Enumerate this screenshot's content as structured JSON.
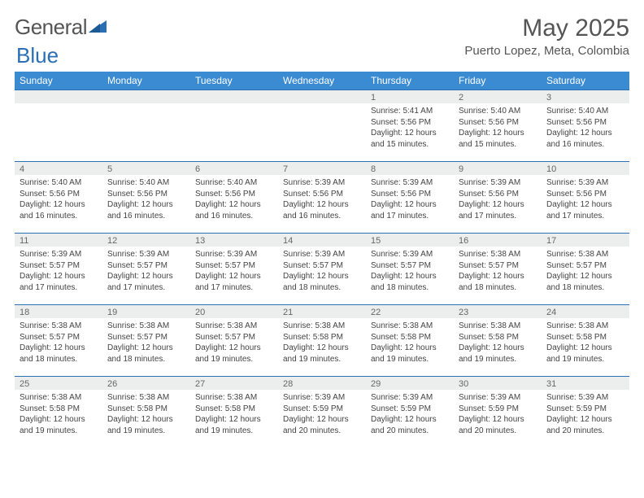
{
  "brand": {
    "part1": "General",
    "part2": "Blue"
  },
  "title": "May 2025",
  "location": "Puerto Lopez, Meta, Colombia",
  "colors": {
    "header_bg": "#3b8bd3",
    "header_text": "#ffffff",
    "rule": "#2a6fb5",
    "daynum_bg": "#eceeee",
    "text": "#444444",
    "title_text": "#555555"
  },
  "day_headers": [
    "Sunday",
    "Monday",
    "Tuesday",
    "Wednesday",
    "Thursday",
    "Friday",
    "Saturday"
  ],
  "weeks": [
    [
      null,
      null,
      null,
      null,
      {
        "n": "1",
        "sunrise": "5:41 AM",
        "sunset": "5:56 PM",
        "daylight": "12 hours and 15 minutes."
      },
      {
        "n": "2",
        "sunrise": "5:40 AM",
        "sunset": "5:56 PM",
        "daylight": "12 hours and 15 minutes."
      },
      {
        "n": "3",
        "sunrise": "5:40 AM",
        "sunset": "5:56 PM",
        "daylight": "12 hours and 16 minutes."
      }
    ],
    [
      {
        "n": "4",
        "sunrise": "5:40 AM",
        "sunset": "5:56 PM",
        "daylight": "12 hours and 16 minutes."
      },
      {
        "n": "5",
        "sunrise": "5:40 AM",
        "sunset": "5:56 PM",
        "daylight": "12 hours and 16 minutes."
      },
      {
        "n": "6",
        "sunrise": "5:40 AM",
        "sunset": "5:56 PM",
        "daylight": "12 hours and 16 minutes."
      },
      {
        "n": "7",
        "sunrise": "5:39 AM",
        "sunset": "5:56 PM",
        "daylight": "12 hours and 16 minutes."
      },
      {
        "n": "8",
        "sunrise": "5:39 AM",
        "sunset": "5:56 PM",
        "daylight": "12 hours and 17 minutes."
      },
      {
        "n": "9",
        "sunrise": "5:39 AM",
        "sunset": "5:56 PM",
        "daylight": "12 hours and 17 minutes."
      },
      {
        "n": "10",
        "sunrise": "5:39 AM",
        "sunset": "5:56 PM",
        "daylight": "12 hours and 17 minutes."
      }
    ],
    [
      {
        "n": "11",
        "sunrise": "5:39 AM",
        "sunset": "5:57 PM",
        "daylight": "12 hours and 17 minutes."
      },
      {
        "n": "12",
        "sunrise": "5:39 AM",
        "sunset": "5:57 PM",
        "daylight": "12 hours and 17 minutes."
      },
      {
        "n": "13",
        "sunrise": "5:39 AM",
        "sunset": "5:57 PM",
        "daylight": "12 hours and 17 minutes."
      },
      {
        "n": "14",
        "sunrise": "5:39 AM",
        "sunset": "5:57 PM",
        "daylight": "12 hours and 18 minutes."
      },
      {
        "n": "15",
        "sunrise": "5:39 AM",
        "sunset": "5:57 PM",
        "daylight": "12 hours and 18 minutes."
      },
      {
        "n": "16",
        "sunrise": "5:38 AM",
        "sunset": "5:57 PM",
        "daylight": "12 hours and 18 minutes."
      },
      {
        "n": "17",
        "sunrise": "5:38 AM",
        "sunset": "5:57 PM",
        "daylight": "12 hours and 18 minutes."
      }
    ],
    [
      {
        "n": "18",
        "sunrise": "5:38 AM",
        "sunset": "5:57 PM",
        "daylight": "12 hours and 18 minutes."
      },
      {
        "n": "19",
        "sunrise": "5:38 AM",
        "sunset": "5:57 PM",
        "daylight": "12 hours and 18 minutes."
      },
      {
        "n": "20",
        "sunrise": "5:38 AM",
        "sunset": "5:57 PM",
        "daylight": "12 hours and 19 minutes."
      },
      {
        "n": "21",
        "sunrise": "5:38 AM",
        "sunset": "5:58 PM",
        "daylight": "12 hours and 19 minutes."
      },
      {
        "n": "22",
        "sunrise": "5:38 AM",
        "sunset": "5:58 PM",
        "daylight": "12 hours and 19 minutes."
      },
      {
        "n": "23",
        "sunrise": "5:38 AM",
        "sunset": "5:58 PM",
        "daylight": "12 hours and 19 minutes."
      },
      {
        "n": "24",
        "sunrise": "5:38 AM",
        "sunset": "5:58 PM",
        "daylight": "12 hours and 19 minutes."
      }
    ],
    [
      {
        "n": "25",
        "sunrise": "5:38 AM",
        "sunset": "5:58 PM",
        "daylight": "12 hours and 19 minutes."
      },
      {
        "n": "26",
        "sunrise": "5:38 AM",
        "sunset": "5:58 PM",
        "daylight": "12 hours and 19 minutes."
      },
      {
        "n": "27",
        "sunrise": "5:38 AM",
        "sunset": "5:58 PM",
        "daylight": "12 hours and 19 minutes."
      },
      {
        "n": "28",
        "sunrise": "5:39 AM",
        "sunset": "5:59 PM",
        "daylight": "12 hours and 20 minutes."
      },
      {
        "n": "29",
        "sunrise": "5:39 AM",
        "sunset": "5:59 PM",
        "daylight": "12 hours and 20 minutes."
      },
      {
        "n": "30",
        "sunrise": "5:39 AM",
        "sunset": "5:59 PM",
        "daylight": "12 hours and 20 minutes."
      },
      {
        "n": "31",
        "sunrise": "5:39 AM",
        "sunset": "5:59 PM",
        "daylight": "12 hours and 20 minutes."
      }
    ]
  ],
  "labels": {
    "sunrise_prefix": "Sunrise: ",
    "sunset_prefix": "Sunset: ",
    "daylight_prefix": "Daylight: "
  }
}
